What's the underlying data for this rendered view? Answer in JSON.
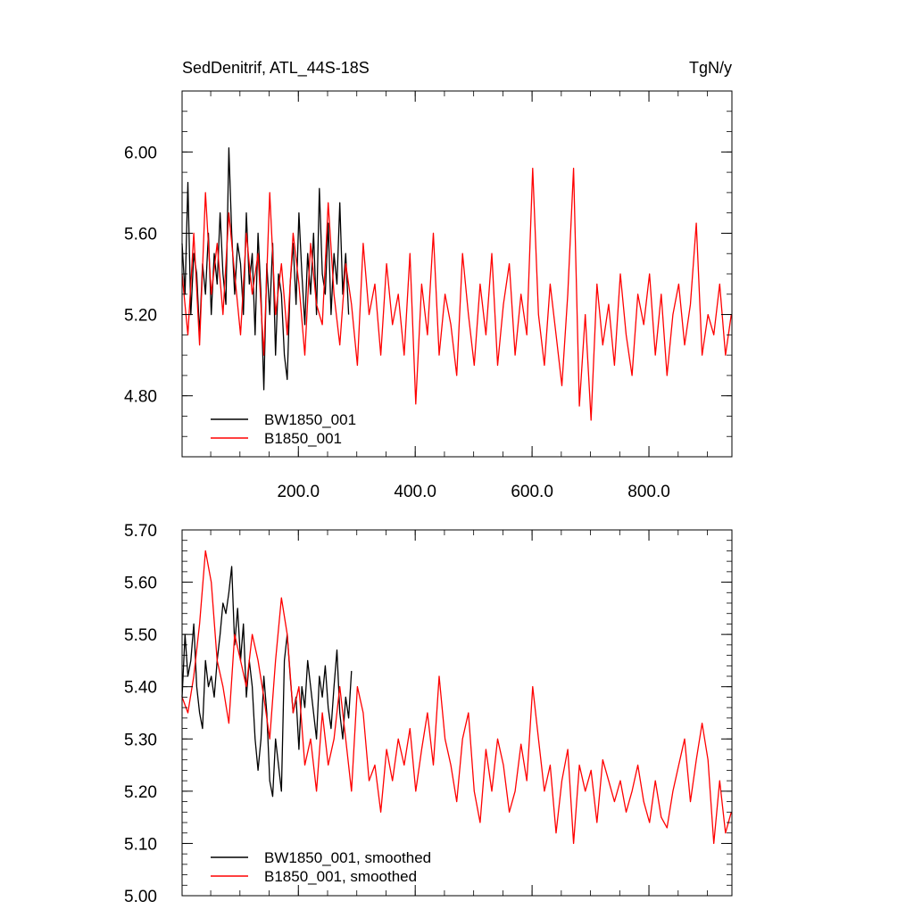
{
  "chart_data": [
    {
      "type": "line",
      "title_left": "SedDenitrif, ATL_44S-18S",
      "title_right": "TgN/y",
      "xlim": [
        1,
        942
      ],
      "ylim": [
        4.5,
        6.3
      ],
      "xticks": [
        200,
        400,
        600,
        800
      ],
      "xtick_labels": [
        "200.0",
        "400.0",
        "600.0",
        "800.0"
      ],
      "yticks": [
        4.8,
        5.2,
        5.6,
        6.0
      ],
      "ytick_labels": [
        "4.80",
        "5.20",
        "5.60",
        "6.00"
      ],
      "legend_position": "bottom-left",
      "series": [
        {
          "name": "BW1850_001",
          "color": "#000000",
          "x": [
            1,
            6,
            11,
            16,
            21,
            26,
            31,
            36,
            41,
            46,
            51,
            56,
            61,
            66,
            71,
            76,
            81,
            86,
            91,
            96,
            101,
            106,
            111,
            116,
            121,
            126,
            131,
            136,
            141,
            146,
            151,
            156,
            161,
            166,
            171,
            176,
            181,
            186,
            191,
            196,
            201,
            206,
            211,
            216,
            221,
            226,
            231,
            236,
            241,
            246,
            251,
            256,
            261,
            266,
            271,
            276,
            281,
            286
          ],
          "y": [
            5.55,
            5.3,
            5.85,
            5.2,
            5.5,
            5.4,
            5.1,
            5.45,
            5.3,
            5.6,
            5.2,
            5.5,
            5.35,
            5.7,
            5.4,
            5.25,
            6.02,
            5.6,
            5.3,
            5.55,
            5.45,
            5.2,
            5.7,
            5.35,
            5.5,
            5.1,
            5.6,
            5.3,
            4.83,
            5.45,
            5.2,
            5.55,
            5.0,
            5.4,
            5.3,
            5.0,
            4.88,
            5.35,
            5.55,
            5.25,
            5.7,
            5.4,
            5.15,
            5.5,
            5.3,
            5.6,
            5.2,
            5.82,
            5.4,
            5.3,
            5.65,
            5.2,
            5.5,
            5.35,
            5.75,
            5.3,
            5.5,
            5.2
          ]
        },
        {
          "name": "B1850_001",
          "color": "#ff0000",
          "x": [
            1,
            11,
            21,
            31,
            41,
            51,
            61,
            71,
            81,
            91,
            101,
            111,
            121,
            131,
            141,
            151,
            161,
            171,
            181,
            191,
            201,
            211,
            221,
            231,
            241,
            251,
            261,
            271,
            281,
            291,
            301,
            311,
            321,
            331,
            341,
            351,
            361,
            371,
            381,
            391,
            401,
            411,
            421,
            431,
            441,
            451,
            461,
            471,
            481,
            491,
            501,
            511,
            521,
            531,
            541,
            551,
            561,
            571,
            581,
            591,
            601,
            611,
            621,
            631,
            641,
            651,
            661,
            671,
            681,
            691,
            701,
            711,
            721,
            731,
            741,
            751,
            761,
            771,
            781,
            791,
            801,
            811,
            821,
            831,
            841,
            851,
            861,
            871,
            881,
            891,
            901,
            911,
            921,
            931,
            941
          ],
          "y": [
            5.4,
            5.1,
            5.6,
            5.05,
            5.8,
            5.3,
            5.55,
            5.2,
            5.7,
            5.4,
            5.1,
            5.6,
            5.3,
            5.5,
            5.0,
            5.8,
            5.2,
            5.45,
            5.1,
            5.6,
            5.35,
            5.0,
            5.55,
            5.25,
            5.15,
            5.75,
            5.3,
            5.05,
            5.45,
            5.25,
            4.95,
            5.55,
            5.2,
            5.35,
            5.0,
            5.45,
            5.15,
            5.3,
            5.0,
            5.5,
            4.76,
            5.35,
            5.1,
            5.6,
            5.0,
            5.3,
            5.15,
            4.9,
            5.5,
            5.2,
            4.95,
            5.35,
            5.1,
            5.5,
            4.95,
            5.25,
            5.45,
            5.0,
            5.3,
            5.1,
            5.92,
            5.2,
            4.95,
            5.35,
            5.1,
            4.85,
            5.3,
            5.92,
            4.75,
            5.2,
            4.68,
            5.35,
            5.05,
            5.25,
            4.95,
            5.4,
            5.1,
            4.9,
            5.3,
            5.15,
            5.4,
            5.0,
            5.3,
            4.9,
            5.2,
            5.35,
            5.05,
            5.25,
            5.65,
            5.0,
            5.2,
            5.1,
            5.35,
            5.0,
            5.2
          ]
        }
      ]
    },
    {
      "type": "line",
      "xlim": [
        1,
        942
      ],
      "ylim": [
        5.0,
        5.7
      ],
      "yticks": [
        5.0,
        5.1,
        5.2,
        5.3,
        5.4,
        5.5,
        5.6,
        5.7
      ],
      "ytick_labels": [
        "5.00",
        "5.10",
        "5.20",
        "5.30",
        "5.40",
        "5.50",
        "5.60",
        "5.70"
      ],
      "legend_position": "bottom-left",
      "series": [
        {
          "name": "BW1850_001, smoothed",
          "color": "#000000",
          "x": [
            1,
            6,
            11,
            16,
            21,
            26,
            31,
            36,
            41,
            46,
            51,
            56,
            61,
            66,
            71,
            76,
            81,
            86,
            91,
            96,
            101,
            106,
            111,
            116,
            121,
            126,
            131,
            136,
            141,
            146,
            151,
            156,
            161,
            166,
            171,
            176,
            181,
            186,
            191,
            196,
            201,
            206,
            211,
            216,
            221,
            226,
            231,
            236,
            241,
            246,
            251,
            256,
            261,
            266,
            271,
            276,
            281,
            286,
            291
          ],
          "y": [
            5.38,
            5.5,
            5.42,
            5.45,
            5.52,
            5.4,
            5.35,
            5.32,
            5.45,
            5.4,
            5.42,
            5.38,
            5.45,
            5.5,
            5.56,
            5.54,
            5.58,
            5.63,
            5.48,
            5.55,
            5.45,
            5.52,
            5.38,
            5.45,
            5.4,
            5.3,
            5.24,
            5.3,
            5.42,
            5.35,
            5.22,
            5.19,
            5.3,
            5.25,
            5.2,
            5.45,
            5.5,
            5.42,
            5.35,
            5.38,
            5.28,
            5.4,
            5.36,
            5.45,
            5.4,
            5.35,
            5.3,
            5.42,
            5.38,
            5.44,
            5.36,
            5.32,
            5.4,
            5.47,
            5.35,
            5.3,
            5.38,
            5.34,
            5.43
          ]
        },
        {
          "name": "B1850_001, smoothed",
          "color": "#ff0000",
          "x": [
            1,
            11,
            21,
            31,
            41,
            51,
            61,
            71,
            81,
            91,
            101,
            111,
            121,
            131,
            141,
            151,
            161,
            171,
            181,
            191,
            201,
            211,
            221,
            231,
            241,
            251,
            261,
            271,
            281,
            291,
            301,
            311,
            321,
            331,
            341,
            351,
            361,
            371,
            381,
            391,
            401,
            411,
            421,
            431,
            441,
            451,
            461,
            471,
            481,
            491,
            501,
            511,
            521,
            531,
            541,
            551,
            561,
            571,
            581,
            591,
            601,
            611,
            621,
            631,
            641,
            651,
            661,
            671,
            681,
            691,
            701,
            711,
            721,
            731,
            741,
            751,
            761,
            771,
            781,
            791,
            801,
            811,
            821,
            831,
            841,
            851,
            861,
            871,
            881,
            891,
            901,
            911,
            921,
            931,
            941
          ],
          "y": [
            5.38,
            5.35,
            5.42,
            5.52,
            5.66,
            5.6,
            5.45,
            5.4,
            5.33,
            5.5,
            5.45,
            5.4,
            5.5,
            5.45,
            5.38,
            5.3,
            5.45,
            5.57,
            5.5,
            5.35,
            5.4,
            5.25,
            5.3,
            5.2,
            5.35,
            5.25,
            5.3,
            5.4,
            5.3,
            5.2,
            5.4,
            5.35,
            5.22,
            5.25,
            5.16,
            5.28,
            5.22,
            5.3,
            5.25,
            5.32,
            5.2,
            5.28,
            5.35,
            5.25,
            5.42,
            5.3,
            5.25,
            5.18,
            5.3,
            5.35,
            5.2,
            5.14,
            5.28,
            5.2,
            5.3,
            5.25,
            5.16,
            5.2,
            5.29,
            5.22,
            5.4,
            5.3,
            5.2,
            5.25,
            5.12,
            5.22,
            5.28,
            5.1,
            5.25,
            5.2,
            5.24,
            5.14,
            5.26,
            5.22,
            5.18,
            5.22,
            5.16,
            5.2,
            5.25,
            5.18,
            5.14,
            5.22,
            5.15,
            5.13,
            5.2,
            5.25,
            5.3,
            5.18,
            5.26,
            5.33,
            5.26,
            5.1,
            5.22,
            5.12,
            5.16
          ]
        }
      ]
    }
  ]
}
